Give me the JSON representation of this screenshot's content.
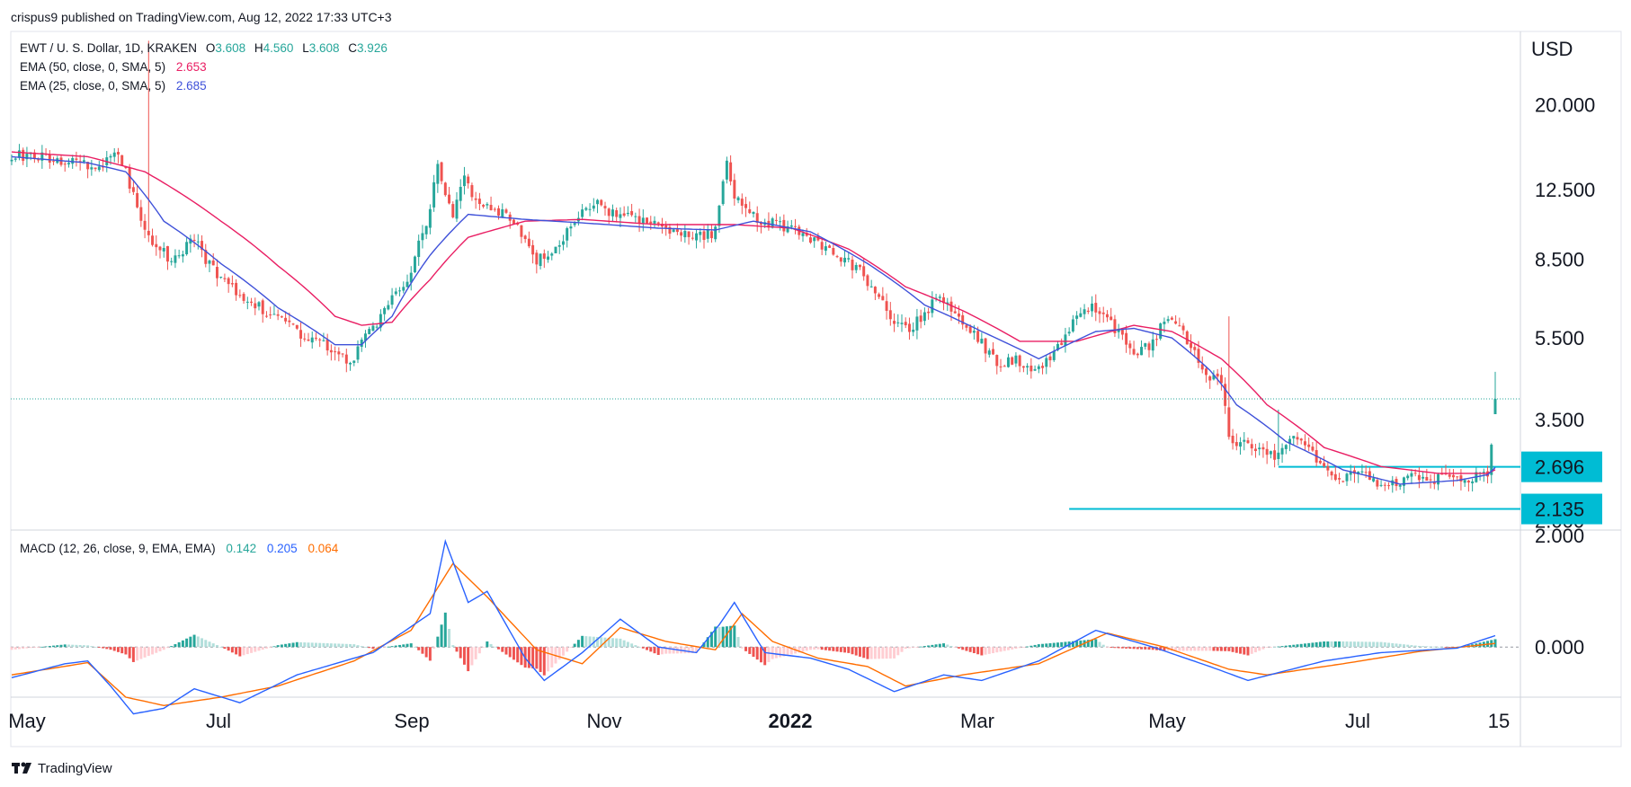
{
  "header": {
    "publisher": "crispus9 published on TradingView.com, Aug 12, 2022 17:33 UTC+3"
  },
  "footer": {
    "brand": "TradingView"
  },
  "legend": {
    "symbol": "EWT / U. S. Dollar, 1D, KRAKEN",
    "o_label": "O",
    "o_value": "3.608",
    "h_label": "H",
    "h_value": "4.560",
    "l_label": "L",
    "l_value": "3.608",
    "c_label": "C",
    "c_value": "3.926",
    "ema50_label": "EMA (50, close, 0, SMA, 5)",
    "ema50_value": "2.653",
    "ema25_label": "EMA (25, close, 0, SMA, 5)",
    "ema25_value": "2.685",
    "macd_label": "MACD (12, 26, close, 9, EMA, EMA)",
    "macd_hist": "0.142",
    "macd_line": "0.205",
    "macd_signal": "0.064"
  },
  "colors": {
    "up": "#26a69a",
    "down": "#ef5350",
    "ema50": "#e91e63",
    "ema25": "#3f51d9",
    "macd_line": "#2962ff",
    "signal_line": "#ff6d00",
    "level": "#00bcd4",
    "axis_text": "#131722"
  },
  "chart_data": [
    {
      "type": "candlestick",
      "currency_label": "USD",
      "y_scale": "log",
      "ylim": [
        1.9,
        30
      ],
      "y_ticks": [
        "20.000",
        "12.500",
        "8.500",
        "5.500",
        "3.500",
        "2.000"
      ],
      "x_ticks": [
        "May",
        "Jul",
        "Sep",
        "Nov",
        "2022",
        "Mar",
        "May",
        "Jul",
        "15"
      ],
      "last_price": 3.926,
      "price_labels": [
        "2.696",
        "2.135"
      ],
      "horizontal_levels": [
        2.696,
        2.135
      ],
      "path_anchors": [
        [
          0,
          15.2
        ],
        [
          15,
          14.7
        ],
        [
          22,
          14.1
        ],
        [
          28,
          15.5
        ],
        [
          32,
          12
        ],
        [
          36,
          9.6
        ],
        [
          42,
          8.4
        ],
        [
          48,
          9.5
        ],
        [
          52,
          8.2
        ],
        [
          58,
          7.2
        ],
        [
          64,
          6.6
        ],
        [
          70,
          6.1
        ],
        [
          76,
          5.6
        ],
        [
          82,
          5.3
        ],
        [
          86,
          5.0
        ],
        [
          89,
          4.7
        ],
        [
          92,
          5.6
        ],
        [
          96,
          6.0
        ],
        [
          100,
          6.9
        ],
        [
          104,
          7.6
        ],
        [
          107,
          9.2
        ],
        [
          110,
          11.0
        ],
        [
          112,
          14.8
        ],
        [
          114,
          12.0
        ],
        [
          116,
          11.0
        ],
        [
          119,
          13.2
        ],
        [
          122,
          11.5
        ],
        [
          126,
          11.3
        ],
        [
          130,
          10.8
        ],
        [
          134,
          9.9
        ],
        [
          138,
          8.4
        ],
        [
          142,
          9.0
        ],
        [
          146,
          9.9
        ],
        [
          150,
          10.9
        ],
        [
          154,
          11.6
        ],
        [
          158,
          10.9
        ],
        [
          162,
          10.7
        ],
        [
          166,
          10.4
        ],
        [
          170,
          10.2
        ],
        [
          175,
          9.7
        ],
        [
          180,
          9.6
        ],
        [
          185,
          9.9
        ],
        [
          188,
          14.5
        ],
        [
          190,
          12.0
        ],
        [
          193,
          11.0
        ],
        [
          198,
          10.5
        ],
        [
          204,
          10.1
        ],
        [
          210,
          9.5
        ],
        [
          216,
          8.9
        ],
        [
          222,
          8.1
        ],
        [
          228,
          7.0
        ],
        [
          232,
          6.0
        ],
        [
          236,
          5.8
        ],
        [
          240,
          6.3
        ],
        [
          244,
          7.0
        ],
        [
          248,
          6.3
        ],
        [
          252,
          5.8
        ],
        [
          256,
          5.2
        ],
        [
          260,
          4.7
        ],
        [
          264,
          4.9
        ],
        [
          268,
          4.5
        ],
        [
          272,
          4.8
        ],
        [
          276,
          5.4
        ],
        [
          280,
          6.2
        ],
        [
          284,
          6.6
        ],
        [
          288,
          6.1
        ],
        [
          292,
          5.5
        ],
        [
          296,
          5.0
        ],
        [
          300,
          5.4
        ],
        [
          304,
          6.2
        ],
        [
          307,
          5.8
        ],
        [
          311,
          5.0
        ],
        [
          315,
          4.4
        ],
        [
          318,
          4.3
        ],
        [
          320,
          3.1
        ],
        [
          324,
          3.1
        ],
        [
          328,
          3.0
        ],
        [
          332,
          2.85
        ],
        [
          336,
          3.2
        ],
        [
          340,
          3.1
        ],
        [
          342,
          2.95
        ],
        [
          344,
          2.7
        ],
        [
          348,
          2.5
        ],
        [
          352,
          2.55
        ],
        [
          356,
          2.6
        ],
        [
          360,
          2.4
        ],
        [
          364,
          2.45
        ],
        [
          368,
          2.55
        ],
        [
          372,
          2.5
        ],
        [
          376,
          2.55
        ],
        [
          380,
          2.5
        ],
        [
          385,
          2.55
        ],
        [
          388,
          2.62
        ],
        [
          389,
          3.0
        ],
        [
          390,
          3.9
        ]
      ],
      "ema25_anchors": [
        [
          0,
          15
        ],
        [
          20,
          14.5
        ],
        [
          30,
          13.8
        ],
        [
          40,
          10.5
        ],
        [
          55,
          8.3
        ],
        [
          70,
          6.5
        ],
        [
          85,
          5.3
        ],
        [
          92,
          5.3
        ],
        [
          100,
          6.2
        ],
        [
          110,
          8.7
        ],
        [
          120,
          10.9
        ],
        [
          135,
          10.6
        ],
        [
          150,
          10.4
        ],
        [
          170,
          10.1
        ],
        [
          185,
          10.0
        ],
        [
          195,
          10.5
        ],
        [
          210,
          9.9
        ],
        [
          225,
          8.3
        ],
        [
          240,
          6.6
        ],
        [
          255,
          5.7
        ],
        [
          270,
          4.9
        ],
        [
          285,
          5.7
        ],
        [
          295,
          5.8
        ],
        [
          305,
          5.5
        ],
        [
          315,
          4.6
        ],
        [
          322,
          3.8
        ],
        [
          335,
          3.1
        ],
        [
          350,
          2.65
        ],
        [
          365,
          2.45
        ],
        [
          380,
          2.5
        ],
        [
          388,
          2.58
        ],
        [
          390,
          2.685
        ]
      ],
      "ema50_anchors": [
        [
          0,
          15.4
        ],
        [
          20,
          15
        ],
        [
          35,
          13.8
        ],
        [
          55,
          10.5
        ],
        [
          70,
          8.2
        ],
        [
          85,
          6.2
        ],
        [
          92,
          5.9
        ],
        [
          100,
          6.0
        ],
        [
          110,
          7.6
        ],
        [
          120,
          9.6
        ],
        [
          135,
          10.5
        ],
        [
          150,
          10.6
        ],
        [
          170,
          10.3
        ],
        [
          190,
          10.3
        ],
        [
          205,
          10.1
        ],
        [
          220,
          9.0
        ],
        [
          235,
          7.3
        ],
        [
          250,
          6.4
        ],
        [
          265,
          5.4
        ],
        [
          280,
          5.4
        ],
        [
          295,
          5.9
        ],
        [
          305,
          5.7
        ],
        [
          318,
          4.9
        ],
        [
          330,
          3.8
        ],
        [
          345,
          3.0
        ],
        [
          360,
          2.7
        ],
        [
          375,
          2.6
        ],
        [
          388,
          2.6
        ],
        [
          390,
          2.653
        ]
      ]
    },
    {
      "type": "macd",
      "ylim": [
        -0.9,
        2.1
      ],
      "y_ticks": [
        "2.000",
        "0.000"
      ],
      "macd_anchors": [
        [
          0,
          -0.55
        ],
        [
          14,
          -0.3
        ],
        [
          20,
          -0.25
        ],
        [
          26,
          -0.7
        ],
        [
          32,
          -1.2
        ],
        [
          40,
          -1.1
        ],
        [
          48,
          -0.75
        ],
        [
          60,
          -1.0
        ],
        [
          75,
          -0.5
        ],
        [
          95,
          -0.1
        ],
        [
          110,
          0.6
        ],
        [
          114,
          1.9
        ],
        [
          120,
          0.8
        ],
        [
          125,
          1.0
        ],
        [
          135,
          -0.2
        ],
        [
          140,
          -0.6
        ],
        [
          150,
          -0.1
        ],
        [
          160,
          0.5
        ],
        [
          170,
          0.0
        ],
        [
          180,
          -0.1
        ],
        [
          186,
          0.4
        ],
        [
          190,
          0.8
        ],
        [
          198,
          -0.1
        ],
        [
          210,
          -0.2
        ],
        [
          220,
          -0.4
        ],
        [
          232,
          -0.8
        ],
        [
          245,
          -0.5
        ],
        [
          255,
          -0.6
        ],
        [
          270,
          -0.25
        ],
        [
          285,
          0.3
        ],
        [
          300,
          0.0
        ],
        [
          315,
          -0.35
        ],
        [
          325,
          -0.6
        ],
        [
          345,
          -0.25
        ],
        [
          360,
          -0.1
        ],
        [
          380,
          -0.02
        ],
        [
          390,
          0.205
        ]
      ],
      "signal_anchors": [
        [
          0,
          -0.5
        ],
        [
          20,
          -0.28
        ],
        [
          30,
          -0.9
        ],
        [
          40,
          -1.05
        ],
        [
          55,
          -0.9
        ],
        [
          70,
          -0.7
        ],
        [
          90,
          -0.25
        ],
        [
          105,
          0.3
        ],
        [
          116,
          1.5
        ],
        [
          125,
          0.9
        ],
        [
          138,
          -0.05
        ],
        [
          150,
          -0.3
        ],
        [
          160,
          0.35
        ],
        [
          172,
          0.1
        ],
        [
          185,
          -0.05
        ],
        [
          192,
          0.6
        ],
        [
          200,
          0.1
        ],
        [
          212,
          -0.2
        ],
        [
          225,
          -0.35
        ],
        [
          235,
          -0.7
        ],
        [
          250,
          -0.5
        ],
        [
          270,
          -0.3
        ],
        [
          288,
          0.25
        ],
        [
          303,
          0.0
        ],
        [
          320,
          -0.4
        ],
        [
          330,
          -0.5
        ],
        [
          350,
          -0.3
        ],
        [
          370,
          -0.08
        ],
        [
          390,
          0.064
        ]
      ]
    }
  ]
}
